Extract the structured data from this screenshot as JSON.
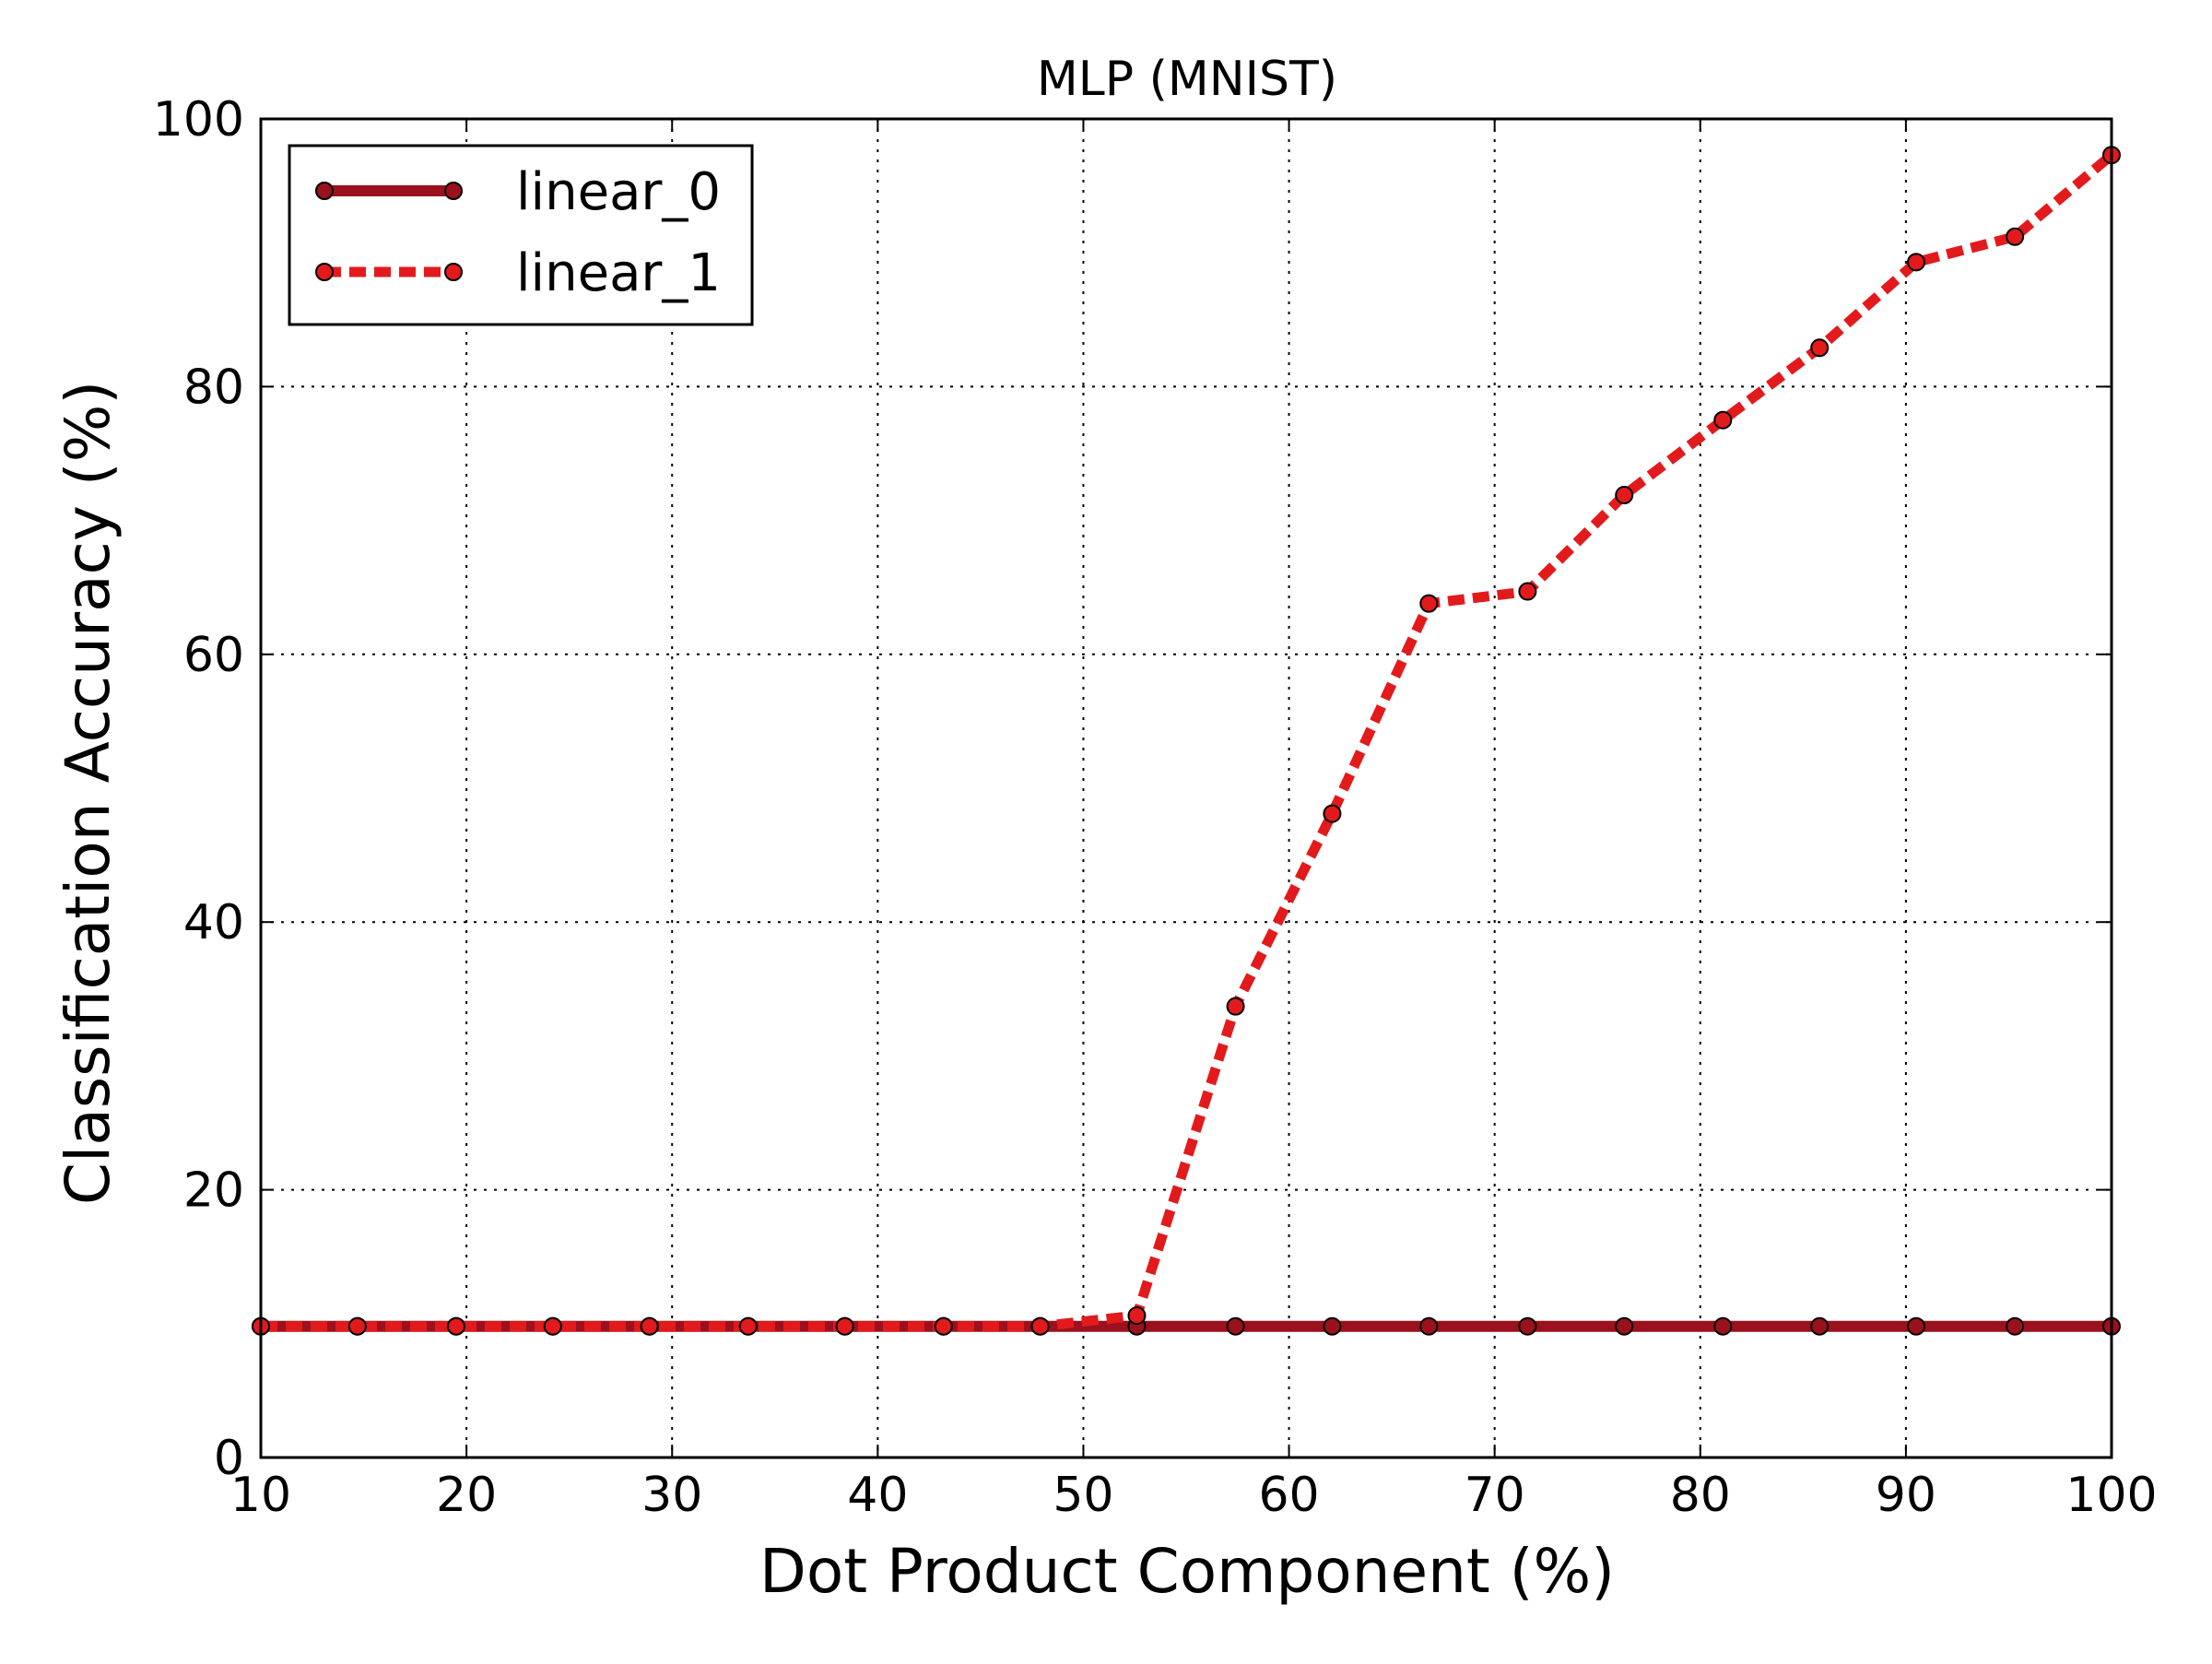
{
  "chart_data": {
    "type": "line",
    "title": "MLP (MNIST)",
    "xlabel": "Dot Product Component (%)",
    "ylabel": "Classification Accuracy (%)",
    "xlim": [
      10,
      100
    ],
    "ylim": [
      0,
      100
    ],
    "xticks": [
      10,
      20,
      30,
      40,
      50,
      60,
      70,
      80,
      90,
      100
    ],
    "yticks": [
      0,
      20,
      40,
      60,
      80,
      100
    ],
    "xtick_labels": [
      "10",
      "20",
      "30",
      "40",
      "50",
      "60",
      "70",
      "80",
      "90",
      "100"
    ],
    "ytick_labels": [
      "0",
      "20",
      "40",
      "60",
      "80",
      "100"
    ],
    "grid": true,
    "legend_position": "top-left",
    "x": [
      10.0,
      14.7,
      19.5,
      24.2,
      28.9,
      33.7,
      38.4,
      43.2,
      47.9,
      52.6,
      57.4,
      62.1,
      66.8,
      71.6,
      76.3,
      81.1,
      85.8,
      90.5,
      95.3,
      100.0
    ],
    "series": [
      {
        "name": "linear_0",
        "color": "#9b111e",
        "style": "solid",
        "values": [
          9.8,
          9.8,
          9.8,
          9.8,
          9.8,
          9.8,
          9.8,
          9.8,
          9.8,
          9.8,
          9.8,
          9.8,
          9.8,
          9.8,
          9.8,
          9.8,
          9.8,
          9.8,
          9.8,
          9.8
        ]
      },
      {
        "name": "linear_1",
        "color": "#e31a1c",
        "style": "dashed",
        "values": [
          9.8,
          9.8,
          9.8,
          9.8,
          9.8,
          9.8,
          9.8,
          9.8,
          9.8,
          10.6,
          33.7,
          48.1,
          63.8,
          64.7,
          71.9,
          77.5,
          82.9,
          89.3,
          91.2,
          97.3
        ]
      }
    ]
  }
}
